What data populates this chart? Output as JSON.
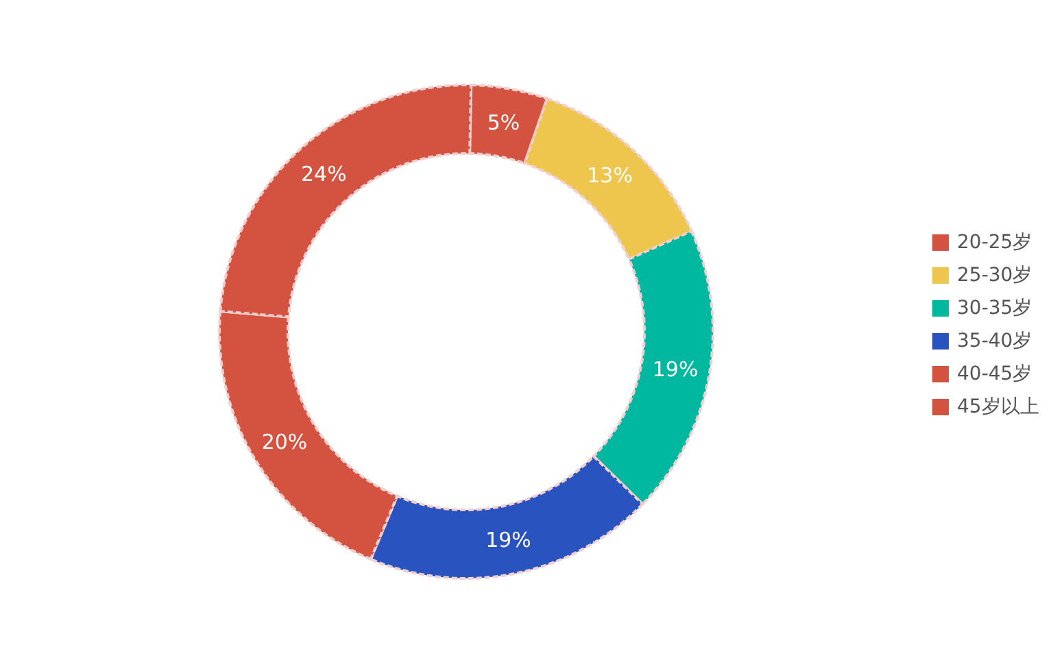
{
  "chart_data": {
    "type": "donut",
    "categories": [
      "20-25岁",
      "25-30岁",
      "30-35岁",
      "35-40岁",
      "40-45岁",
      "45岁以上"
    ],
    "values": [
      5,
      13,
      19,
      19,
      20,
      24
    ],
    "value_labels": [
      "5%",
      "13%",
      "19%",
      "19%",
      "20%",
      "24%"
    ],
    "colors": [
      "#d35340",
      "#eec64d",
      "#00b8a0",
      "#2953bf",
      "#d35340",
      "#d35340"
    ],
    "legend": "right"
  }
}
